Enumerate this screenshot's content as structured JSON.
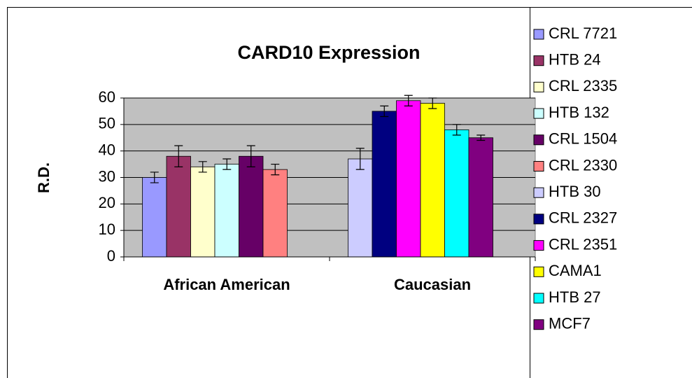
{
  "chart_data": {
    "type": "bar",
    "title": "CARD10 Expression",
    "y_label": "R.D.",
    "categories": [
      "African American",
      "Caucasian"
    ],
    "series": [
      {
        "name": "CRL 7721",
        "color": "#9999ff",
        "values": [
          30,
          null
        ],
        "errors": [
          2,
          null
        ]
      },
      {
        "name": "HTB 24",
        "color": "#993366",
        "values": [
          38,
          null
        ],
        "errors": [
          4,
          null
        ]
      },
      {
        "name": "CRL 2335",
        "color": "#ffffcc",
        "values": [
          34,
          null
        ],
        "errors": [
          2,
          null
        ]
      },
      {
        "name": "HTB 132",
        "color": "#ccffff",
        "values": [
          35,
          null
        ],
        "errors": [
          2,
          null
        ]
      },
      {
        "name": "CRL 1504",
        "color": "#660066",
        "values": [
          38,
          null
        ],
        "errors": [
          4,
          null
        ]
      },
      {
        "name": "CRL 2330",
        "color": "#ff8080",
        "values": [
          33,
          null
        ],
        "errors": [
          2,
          null
        ]
      },
      {
        "name": "HTB 30",
        "color": "#ccccff",
        "values": [
          null,
          37
        ],
        "errors": [
          null,
          4
        ]
      },
      {
        "name": "CRL 2327",
        "color": "#000080",
        "values": [
          null,
          55
        ],
        "errors": [
          null,
          2
        ]
      },
      {
        "name": "CRL 2351",
        "color": "#ff00ff",
        "values": [
          null,
          59
        ],
        "errors": [
          null,
          2
        ]
      },
      {
        "name": "CAMA1",
        "color": "#ffff00",
        "values": [
          null,
          58
        ],
        "errors": [
          null,
          2
        ]
      },
      {
        "name": "HTB 27",
        "color": "#00ffff",
        "values": [
          null,
          48
        ],
        "errors": [
          null,
          2
        ]
      },
      {
        "name": "MCF7",
        "color": "#800080",
        "values": [
          null,
          45
        ],
        "errors": [
          null,
          1
        ]
      }
    ],
    "ylim": [
      0,
      60
    ],
    "yticks": [
      0,
      10,
      20,
      30,
      40,
      50,
      60
    ],
    "grid": true,
    "legend": "right",
    "plot_color": "#c0c0c0"
  }
}
